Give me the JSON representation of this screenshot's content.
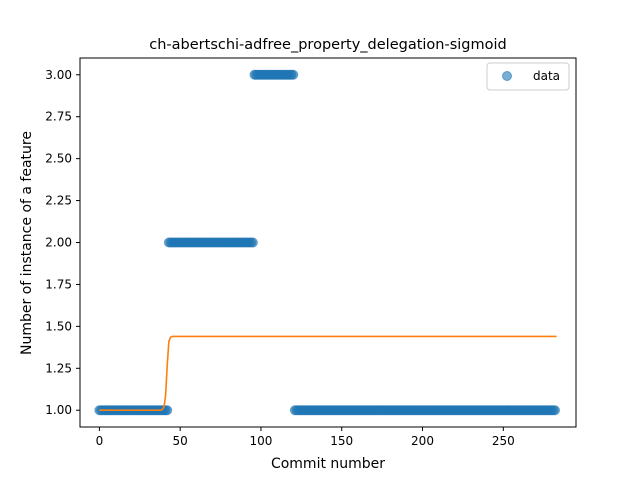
{
  "chart_data": {
    "type": "scatter",
    "title": "ch-abertschi-adfree_property_delegation-sigmoid",
    "xlabel": "Commit number",
    "ylabel": "Number of instance of a feature",
    "xlim": [
      -12,
      295
    ],
    "ylim": [
      0.9,
      3.1
    ],
    "xticks": [
      0,
      50,
      100,
      150,
      200,
      250
    ],
    "xtick_labels": [
      "0",
      "50",
      "100",
      "150",
      "200",
      "250"
    ],
    "yticks": [
      1.0,
      1.25,
      1.5,
      1.75,
      2.0,
      2.25,
      2.5,
      2.75,
      3.0
    ],
    "ytick_labels": [
      "1.00",
      "1.25",
      "1.50",
      "1.75",
      "2.00",
      "2.25",
      "2.50",
      "2.75",
      "3.00"
    ],
    "grid": false,
    "legend": {
      "position": "top-right",
      "entries": [
        "data"
      ]
    },
    "series": [
      {
        "name": "data",
        "kind": "scatter",
        "color": "#1f77b4",
        "segments": [
          {
            "x_start": 0,
            "x_end": 43,
            "y": 1.0
          },
          {
            "x_start": 43,
            "x_end": 96,
            "y": 2.0
          },
          {
            "x_start": 96,
            "x_end": 121,
            "y": 3.0
          },
          {
            "x_start": 121,
            "x_end": 283,
            "y": 1.0
          }
        ]
      },
      {
        "kind": "line",
        "color": "#ff7f0e",
        "points": [
          [
            0,
            1.0
          ],
          [
            38,
            1.0
          ],
          [
            39,
            1.005
          ],
          [
            40,
            1.02
          ],
          [
            41,
            1.09
          ],
          [
            42,
            1.27
          ],
          [
            43,
            1.41
          ],
          [
            44,
            1.435
          ],
          [
            45,
            1.44
          ],
          [
            283,
            1.44
          ]
        ]
      }
    ]
  }
}
